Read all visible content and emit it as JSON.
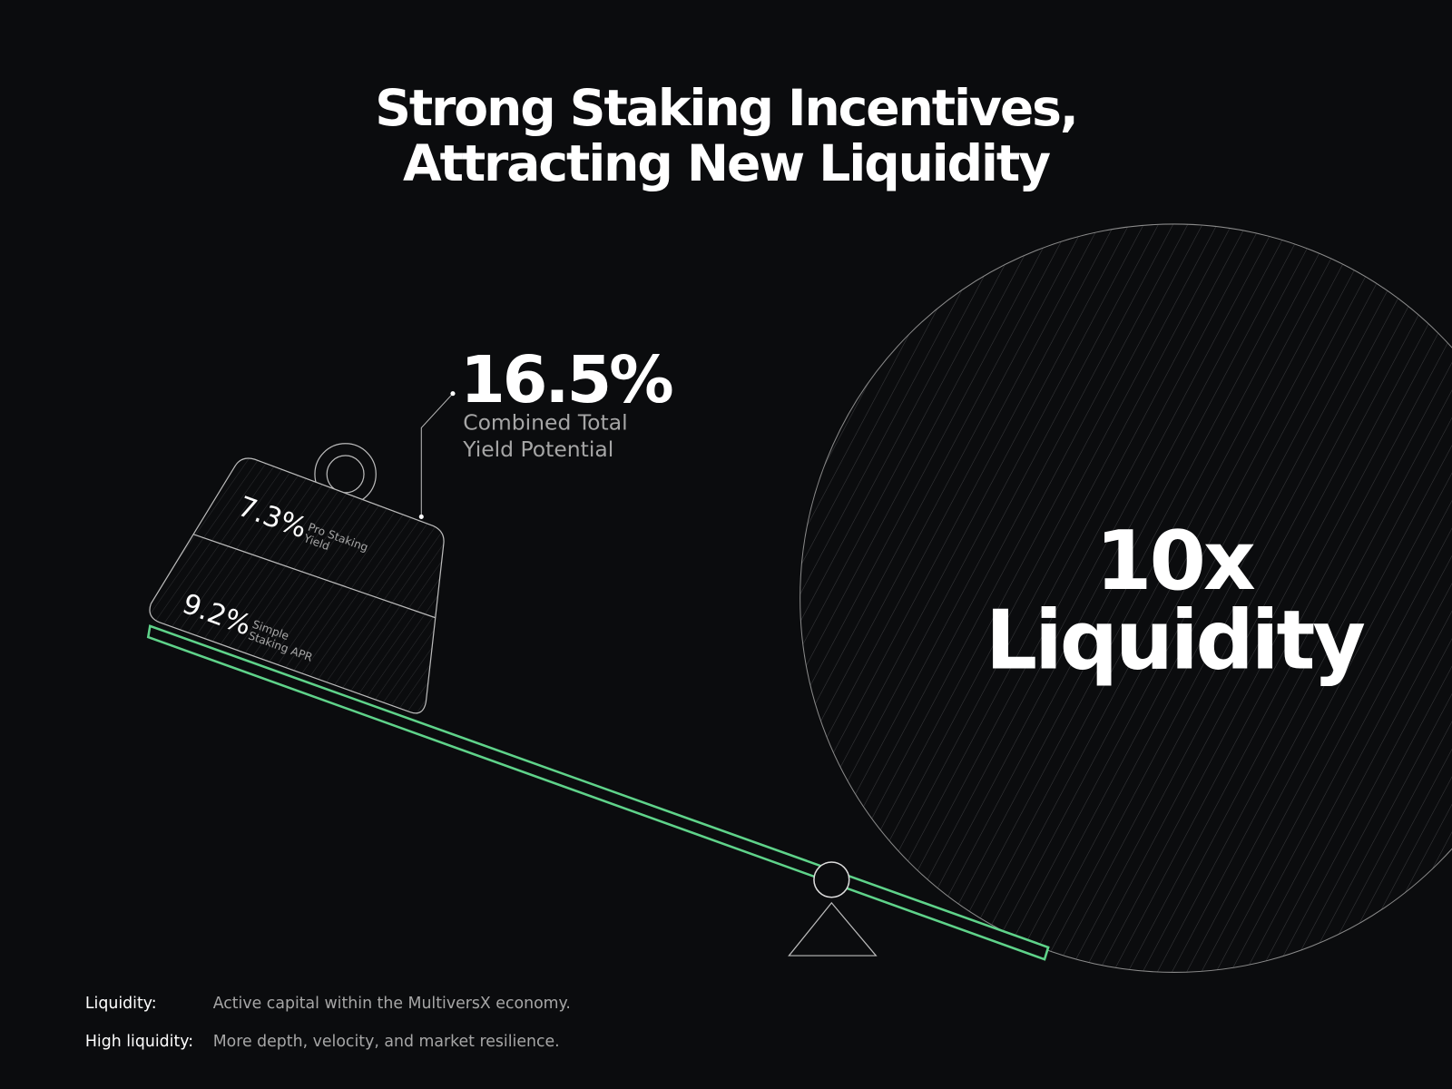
{
  "header": {
    "title": [
      "Strong Staking Incentives,",
      "Attracting New Liquidity"
    ]
  },
  "callout": {
    "value": "16.5%",
    "caption": [
      "Combined Total",
      "Yield Potential"
    ]
  },
  "weight": {
    "sections": [
      {
        "value": "7.3%",
        "label": [
          "Pro Staking",
          "Yield"
        ]
      },
      {
        "value": "9.2%",
        "label": [
          "Simple",
          "Staking APR"
        ]
      }
    ]
  },
  "counterweight": {
    "label": [
      "10x",
      "Liquidity"
    ]
  },
  "definitions": [
    {
      "term": "Liquidity:",
      "text": "Active capital within the MultiversX economy."
    },
    {
      "term": "High liquidity:",
      "text": "More depth, velocity, and market resilience."
    }
  ]
}
